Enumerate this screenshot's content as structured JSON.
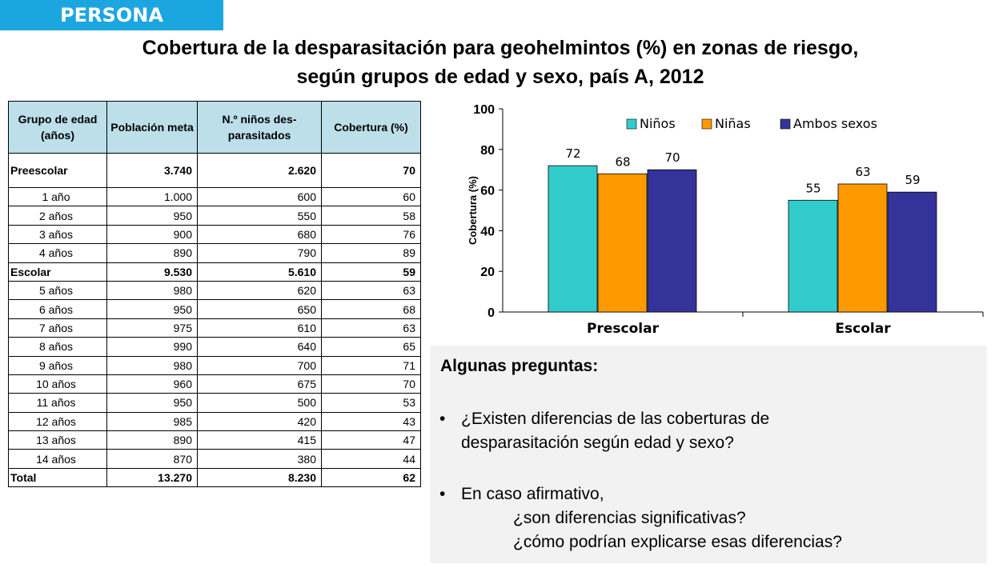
{
  "tag": "PERSONA",
  "title_line1": "Cobertura de la desparasitación para geohelmintos (%) en zonas de riesgo,",
  "title_line2": "según grupos de edad y sexo, país A, 2012",
  "table": {
    "headers": [
      "Grupo de edad (años)",
      "Población meta",
      "N.º niños des-parasitados",
      "Cobertura (%)"
    ],
    "rows": [
      {
        "label": "Preescolar",
        "pop": "3.740",
        "n": "2.620",
        "cov": "70",
        "bold": true
      },
      {
        "label": "1 año",
        "pop": "1.000",
        "n": "600",
        "cov": "60"
      },
      {
        "label": "2 años",
        "pop": "950",
        "n": "550",
        "cov": "58"
      },
      {
        "label": "3 años",
        "pop": "900",
        "n": "680",
        "cov": "76"
      },
      {
        "label": "4 años",
        "pop": "890",
        "n": "790",
        "cov": "89"
      },
      {
        "label": "Escolar",
        "pop": "9.530",
        "n": "5.610",
        "cov": "59",
        "bold": true
      },
      {
        "label": "5 años",
        "pop": "980",
        "n": "620",
        "cov": "63"
      },
      {
        "label": "6 años",
        "pop": "950",
        "n": "650",
        "cov": "68"
      },
      {
        "label": "7 años",
        "pop": "975",
        "n": "610",
        "cov": "63"
      },
      {
        "label": "8 años",
        "pop": "990",
        "n": "640",
        "cov": "65"
      },
      {
        "label": "9 años",
        "pop": "980",
        "n": "700",
        "cov": "71"
      },
      {
        "label": "10 años",
        "pop": "960",
        "n": "675",
        "cov": "70"
      },
      {
        "label": "11 años",
        "pop": "950",
        "n": "500",
        "cov": "53"
      },
      {
        "label": "12 años",
        "pop": "985",
        "n": "420",
        "cov": "43"
      },
      {
        "label": "13 años",
        "pop": "890",
        "n": "415",
        "cov": "47"
      },
      {
        "label": "14 años",
        "pop": "870",
        "n": "380",
        "cov": "44"
      },
      {
        "label": "Total",
        "pop": "13.270",
        "n": "8.230",
        "cov": "62",
        "bold": true
      }
    ]
  },
  "chart_data": {
    "type": "bar",
    "categories": [
      "Prescolar",
      "Escolar"
    ],
    "series": [
      {
        "name": "Niños",
        "values": [
          72,
          55
        ],
        "color": "#33cccc"
      },
      {
        "name": "Niñas",
        "values": [
          68,
          63
        ],
        "color": "#ff9900"
      },
      {
        "name": "Ambos sexos",
        "values": [
          70,
          59
        ],
        "color": "#333399"
      }
    ],
    "ylabel": "Cobertura (%)",
    "ylim": [
      0,
      100
    ],
    "yticks": [
      0,
      20,
      40,
      60,
      80,
      100
    ],
    "legend": "top"
  },
  "questions": {
    "heading": "Algunas preguntas:",
    "bullet": "•",
    "q1_line1": "¿Existen diferencias de las coberturas de",
    "q1_line2": "desparasitación según edad y sexo?",
    "q2_line1": "En caso afirmativo,",
    "q2_line2": "¿son diferencias significativas?",
    "q2_line3": "¿cómo podrían explicarse esas diferencias?"
  }
}
